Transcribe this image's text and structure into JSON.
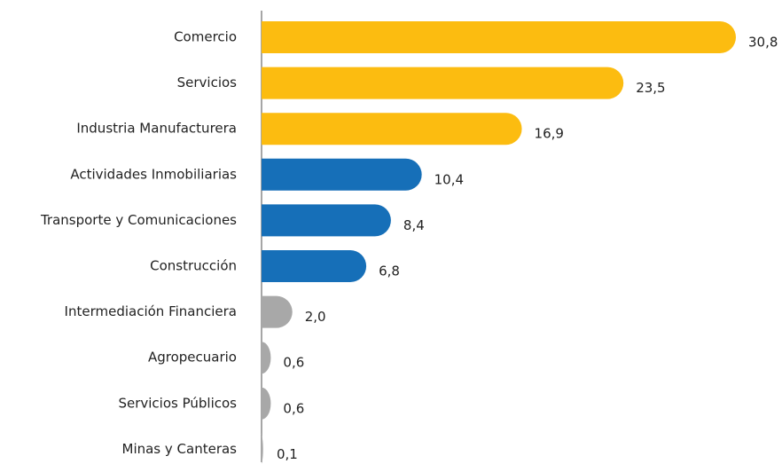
{
  "chart_data": {
    "type": "bar",
    "orientation": "horizontal",
    "categories": [
      "Comercio",
      "Servicios",
      "Industria Manufacturera",
      "Actividades Inmobiliarias",
      "Transporte y Comunicaciones",
      "Construcción",
      "Intermediación Financiera",
      "Agropecuario",
      "Servicios Públicos",
      "Minas y Canteras"
    ],
    "values": [
      30.8,
      23.5,
      16.9,
      10.4,
      8.4,
      6.8,
      2.0,
      0.6,
      0.6,
      0.1
    ],
    "value_labels": [
      "30,8",
      "23,5",
      "16,9",
      "10,4",
      "8,4",
      "6,8",
      "2,0",
      "0,6",
      "0,6",
      "0,1"
    ],
    "colors": [
      "#fcbc10",
      "#fcbc10",
      "#fcbc10",
      "#166fb8",
      "#166fb8",
      "#166fb8",
      "#a8a8a8",
      "#a8a8a8",
      "#a8a8a8",
      "#a8a8a8"
    ]
  }
}
